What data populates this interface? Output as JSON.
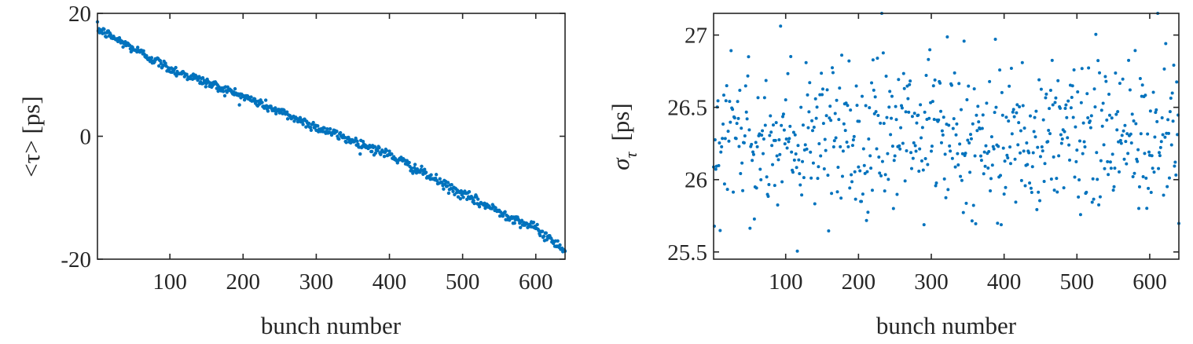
{
  "chart_data": [
    {
      "type": "scatter",
      "title": "",
      "xlabel": "bunch number",
      "ylabel": "<τ>  [ps]",
      "xlim": [
        1,
        640
      ],
      "ylim": [
        -20,
        20
      ],
      "xticks": [
        100,
        200,
        300,
        400,
        500,
        600
      ],
      "yticks": [
        -20,
        0,
        20
      ],
      "xtick_labels": [
        "100",
        "200",
        "300",
        "400",
        "500",
        "600"
      ],
      "ytick_labels": [
        "-20",
        "0",
        "20"
      ],
      "grid": false,
      "marker_color": "#0072BD",
      "trend": [
        [
          1,
          17.5
        ],
        [
          100,
          11.0
        ],
        [
          200,
          6.5
        ],
        [
          300,
          1.5
        ],
        [
          400,
          -3.0
        ],
        [
          500,
          -9.5
        ],
        [
          600,
          -15.0
        ],
        [
          640,
          -18.5
        ]
      ],
      "noise_sd": 0.4,
      "n_points": 640
    },
    {
      "type": "scatter",
      "title": "",
      "xlabel": "bunch number",
      "ylabel": "σ_τ  [ps]",
      "ylabel_symbol": "σ",
      "ylabel_subscript": "τ",
      "ylabel_unit": "[ps]",
      "xlim": [
        1,
        640
      ],
      "ylim": [
        25.45,
        27.15
      ],
      "xticks": [
        100,
        200,
        300,
        400,
        500,
        600
      ],
      "yticks": [
        25.5,
        26,
        26.5,
        27
      ],
      "xtick_labels": [
        "100",
        "200",
        "300",
        "400",
        "500",
        "600"
      ],
      "ytick_labels": [
        "25.5",
        "26",
        "26.5",
        "27"
      ],
      "grid": false,
      "marker_color": "#0072BD",
      "mean": 26.3,
      "spread_sd": 0.28,
      "n_points": 640
    }
  ]
}
